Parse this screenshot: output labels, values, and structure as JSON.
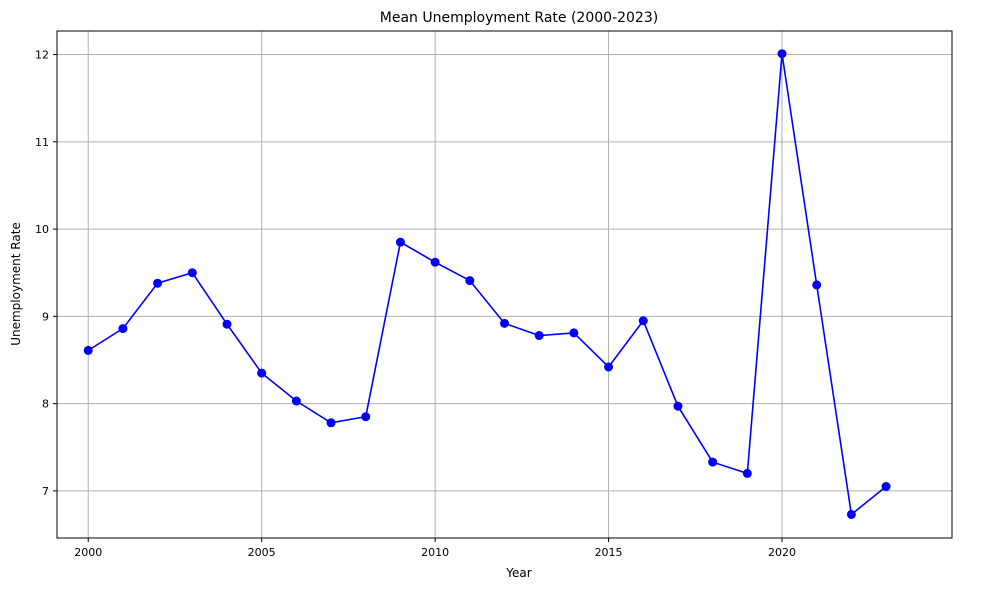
{
  "chart_data": {
    "type": "line",
    "title": "Mean Unemployment Rate (2000-2023)",
    "xlabel": "Year",
    "ylabel": "Unemployment Rate",
    "xlim": [
      1999.1,
      2024.9
    ],
    "ylim": [
      6.46,
      12.27
    ],
    "xticks": [
      2000,
      2005,
      2010,
      2015,
      2020
    ],
    "yticks": [
      7,
      8,
      9,
      10,
      11,
      12
    ],
    "grid": true,
    "color": "#0000ff",
    "series": [
      {
        "x": [
          2000,
          2001,
          2002,
          2003,
          2004,
          2005,
          2006,
          2007,
          2008,
          2009,
          2010,
          2011,
          2012,
          2013,
          2014,
          2015,
          2016,
          2017,
          2018,
          2019,
          2020,
          2021,
          2022,
          2023
        ],
        "values": [
          8.61,
          8.86,
          9.38,
          9.5,
          8.91,
          8.35,
          8.03,
          7.78,
          7.85,
          9.85,
          9.62,
          9.41,
          8.92,
          8.78,
          8.81,
          8.42,
          8.95,
          7.97,
          7.33,
          7.2,
          12.01,
          9.36,
          6.73,
          7.05
        ]
      }
    ]
  }
}
